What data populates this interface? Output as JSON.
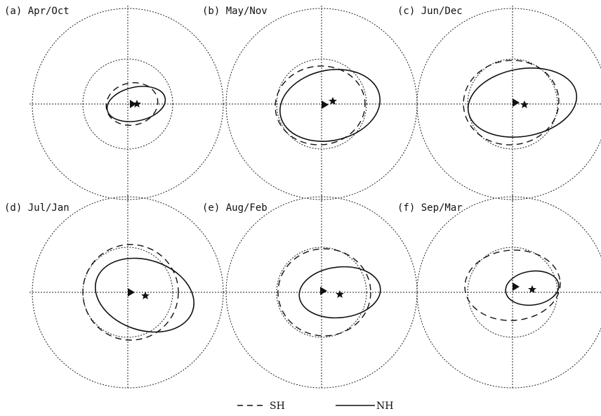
{
  "panels": [
    {
      "id": "a",
      "label": "(a) Apr/Oct"
    },
    {
      "id": "b",
      "label": "(b) May/Nov"
    },
    {
      "id": "c",
      "label": "(c) Jun/Dec"
    },
    {
      "id": "d",
      "label": "(d) Jul/Jan"
    },
    {
      "id": "e",
      "label": "(e) Aug/Feb"
    },
    {
      "id": "f",
      "label": "(f) Sep/Mar"
    }
  ],
  "legend": {
    "sh_label": "SH",
    "nh_label": "NH"
  },
  "marker_icons": {
    "triangle": "triangle-marker-icon",
    "star": "star-marker-icon"
  }
}
